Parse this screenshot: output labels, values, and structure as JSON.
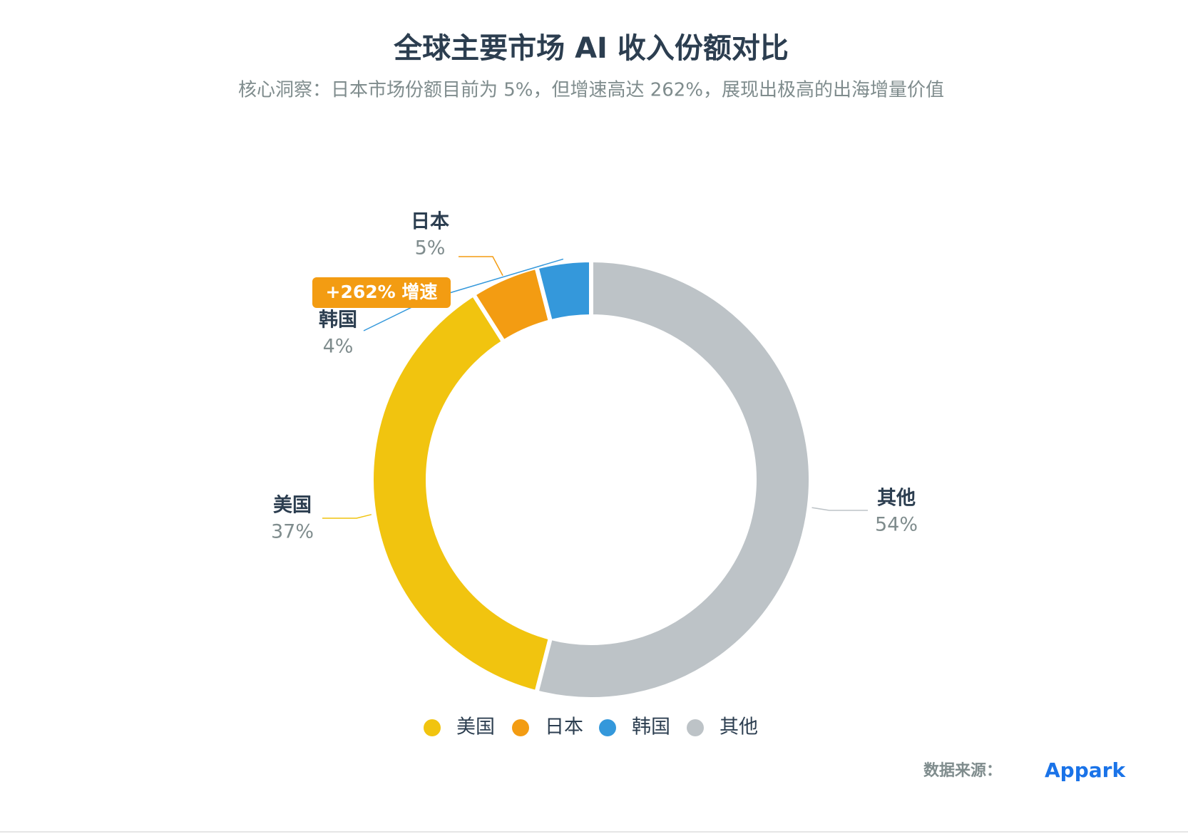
{
  "chart_data": {
    "type": "donut",
    "title": "全球主要市场 AI 收入份额对比",
    "subtitle": "核心洞察：日本市场份额目前为 5%，但增速高达 262%，展现出极高的出海增量价值",
    "categories": [
      "美国",
      "日本",
      "韩国",
      "其他"
    ],
    "values": [
      37,
      5,
      4,
      54
    ],
    "value_labels": [
      "37%",
      "5%",
      "4%",
      "54%"
    ],
    "colors": [
      "#f1c40f",
      "#f39c12",
      "#3498db",
      "#bdc3c7"
    ],
    "annotation": "+262% 增速",
    "source_label": "数据来源：",
    "source": "Appark"
  }
}
